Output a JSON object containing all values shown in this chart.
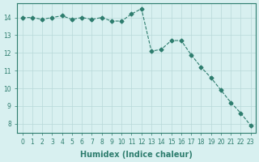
{
  "x": [
    0,
    1,
    2,
    3,
    4,
    5,
    6,
    7,
    8,
    9,
    10,
    11,
    12,
    13,
    14,
    15,
    16,
    17,
    18,
    19,
    20,
    21,
    22,
    23
  ],
  "y": [
    14.0,
    14.0,
    13.9,
    14.0,
    14.1,
    13.9,
    14.0,
    13.9,
    14.0,
    13.8,
    13.8,
    14.2,
    14.5,
    12.1,
    12.2,
    12.7,
    12.7,
    11.9,
    11.2,
    10.6,
    9.9,
    9.2,
    8.6,
    7.9
  ],
  "line_color": "#2e7d6e",
  "marker_color": "#2e7d6e",
  "bg_color": "#d8f0f0",
  "grid_color": "#b8d8d8",
  "xlabel": "Humidex (Indice chaleur)",
  "ylabel": "",
  "xlim": [
    -0.5,
    23.5
  ],
  "ylim": [
    7.5,
    14.8
  ],
  "yticks": [
    8,
    9,
    10,
    11,
    12,
    13,
    14
  ],
  "xticks": [
    0,
    1,
    2,
    3,
    4,
    5,
    6,
    7,
    8,
    9,
    10,
    11,
    12,
    13,
    14,
    15,
    16,
    17,
    18,
    19,
    20,
    21,
    22,
    23
  ],
  "tick_color": "#2e7d6e",
  "label_color": "#2e7d6e",
  "spine_color": "#2e7d6e",
  "line_width": 0.8,
  "marker_size": 2.5
}
